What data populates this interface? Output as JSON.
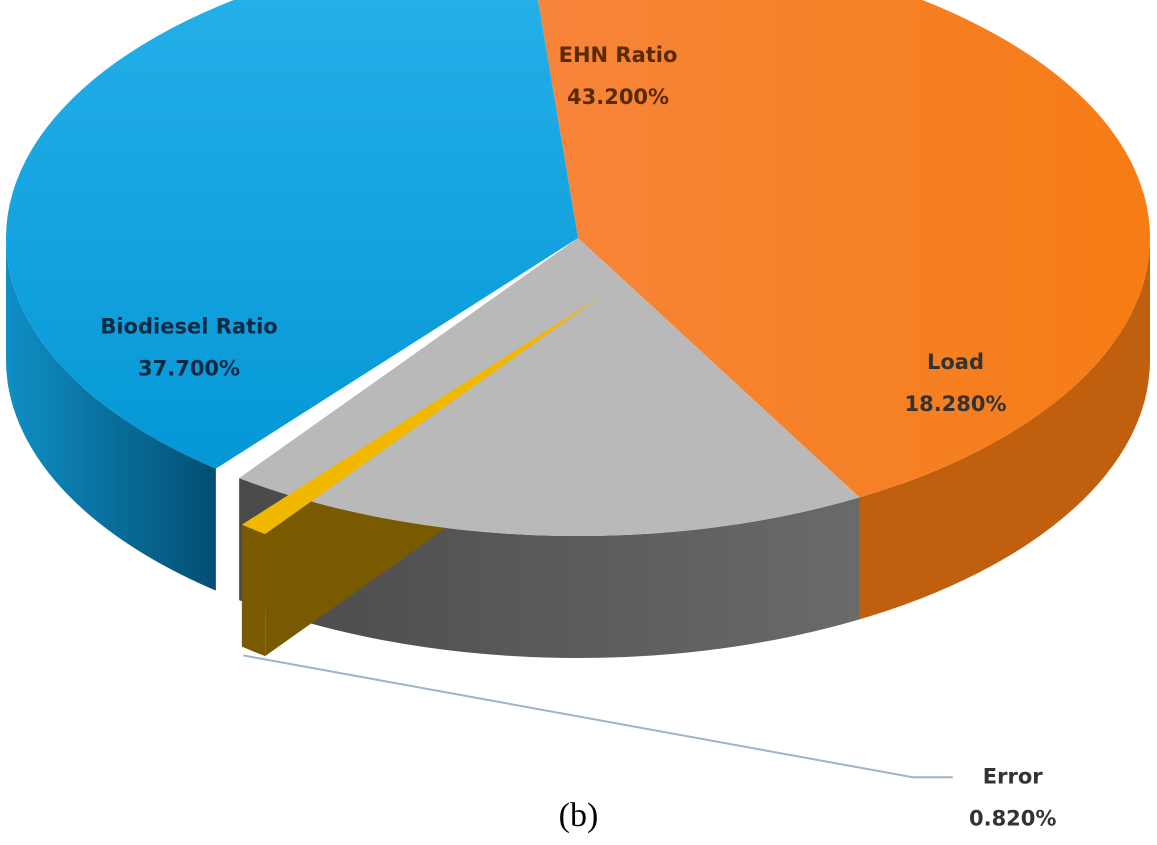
{
  "caption": "(b)",
  "chart_data": {
    "type": "pie",
    "style": "3d-exploded",
    "title": "",
    "slices": [
      {
        "label": "EHN Ratio",
        "value": 43.2,
        "display": "43.200%",
        "color": "#f47c1f",
        "side_color": "#c0600f",
        "text_color": "#5a2a05",
        "exploded": false
      },
      {
        "label": "Load",
        "value": 18.28,
        "display": "18.280%",
        "color": "#b9b9b9",
        "side_color": "#555555",
        "text_color": "#333333",
        "exploded": false
      },
      {
        "label": "Error",
        "value": 0.82,
        "display": "0.820%",
        "color": "#f2b800",
        "side_color": "#7a5a00",
        "text_color": "#333333",
        "exploded": true
      },
      {
        "label": "Biodiesel Ratio",
        "value": 37.7,
        "display": "37.700%",
        "color": "#0aa3de",
        "side_color": "#035a82",
        "text_color": "#0a2a44",
        "exploded": false
      }
    ]
  }
}
